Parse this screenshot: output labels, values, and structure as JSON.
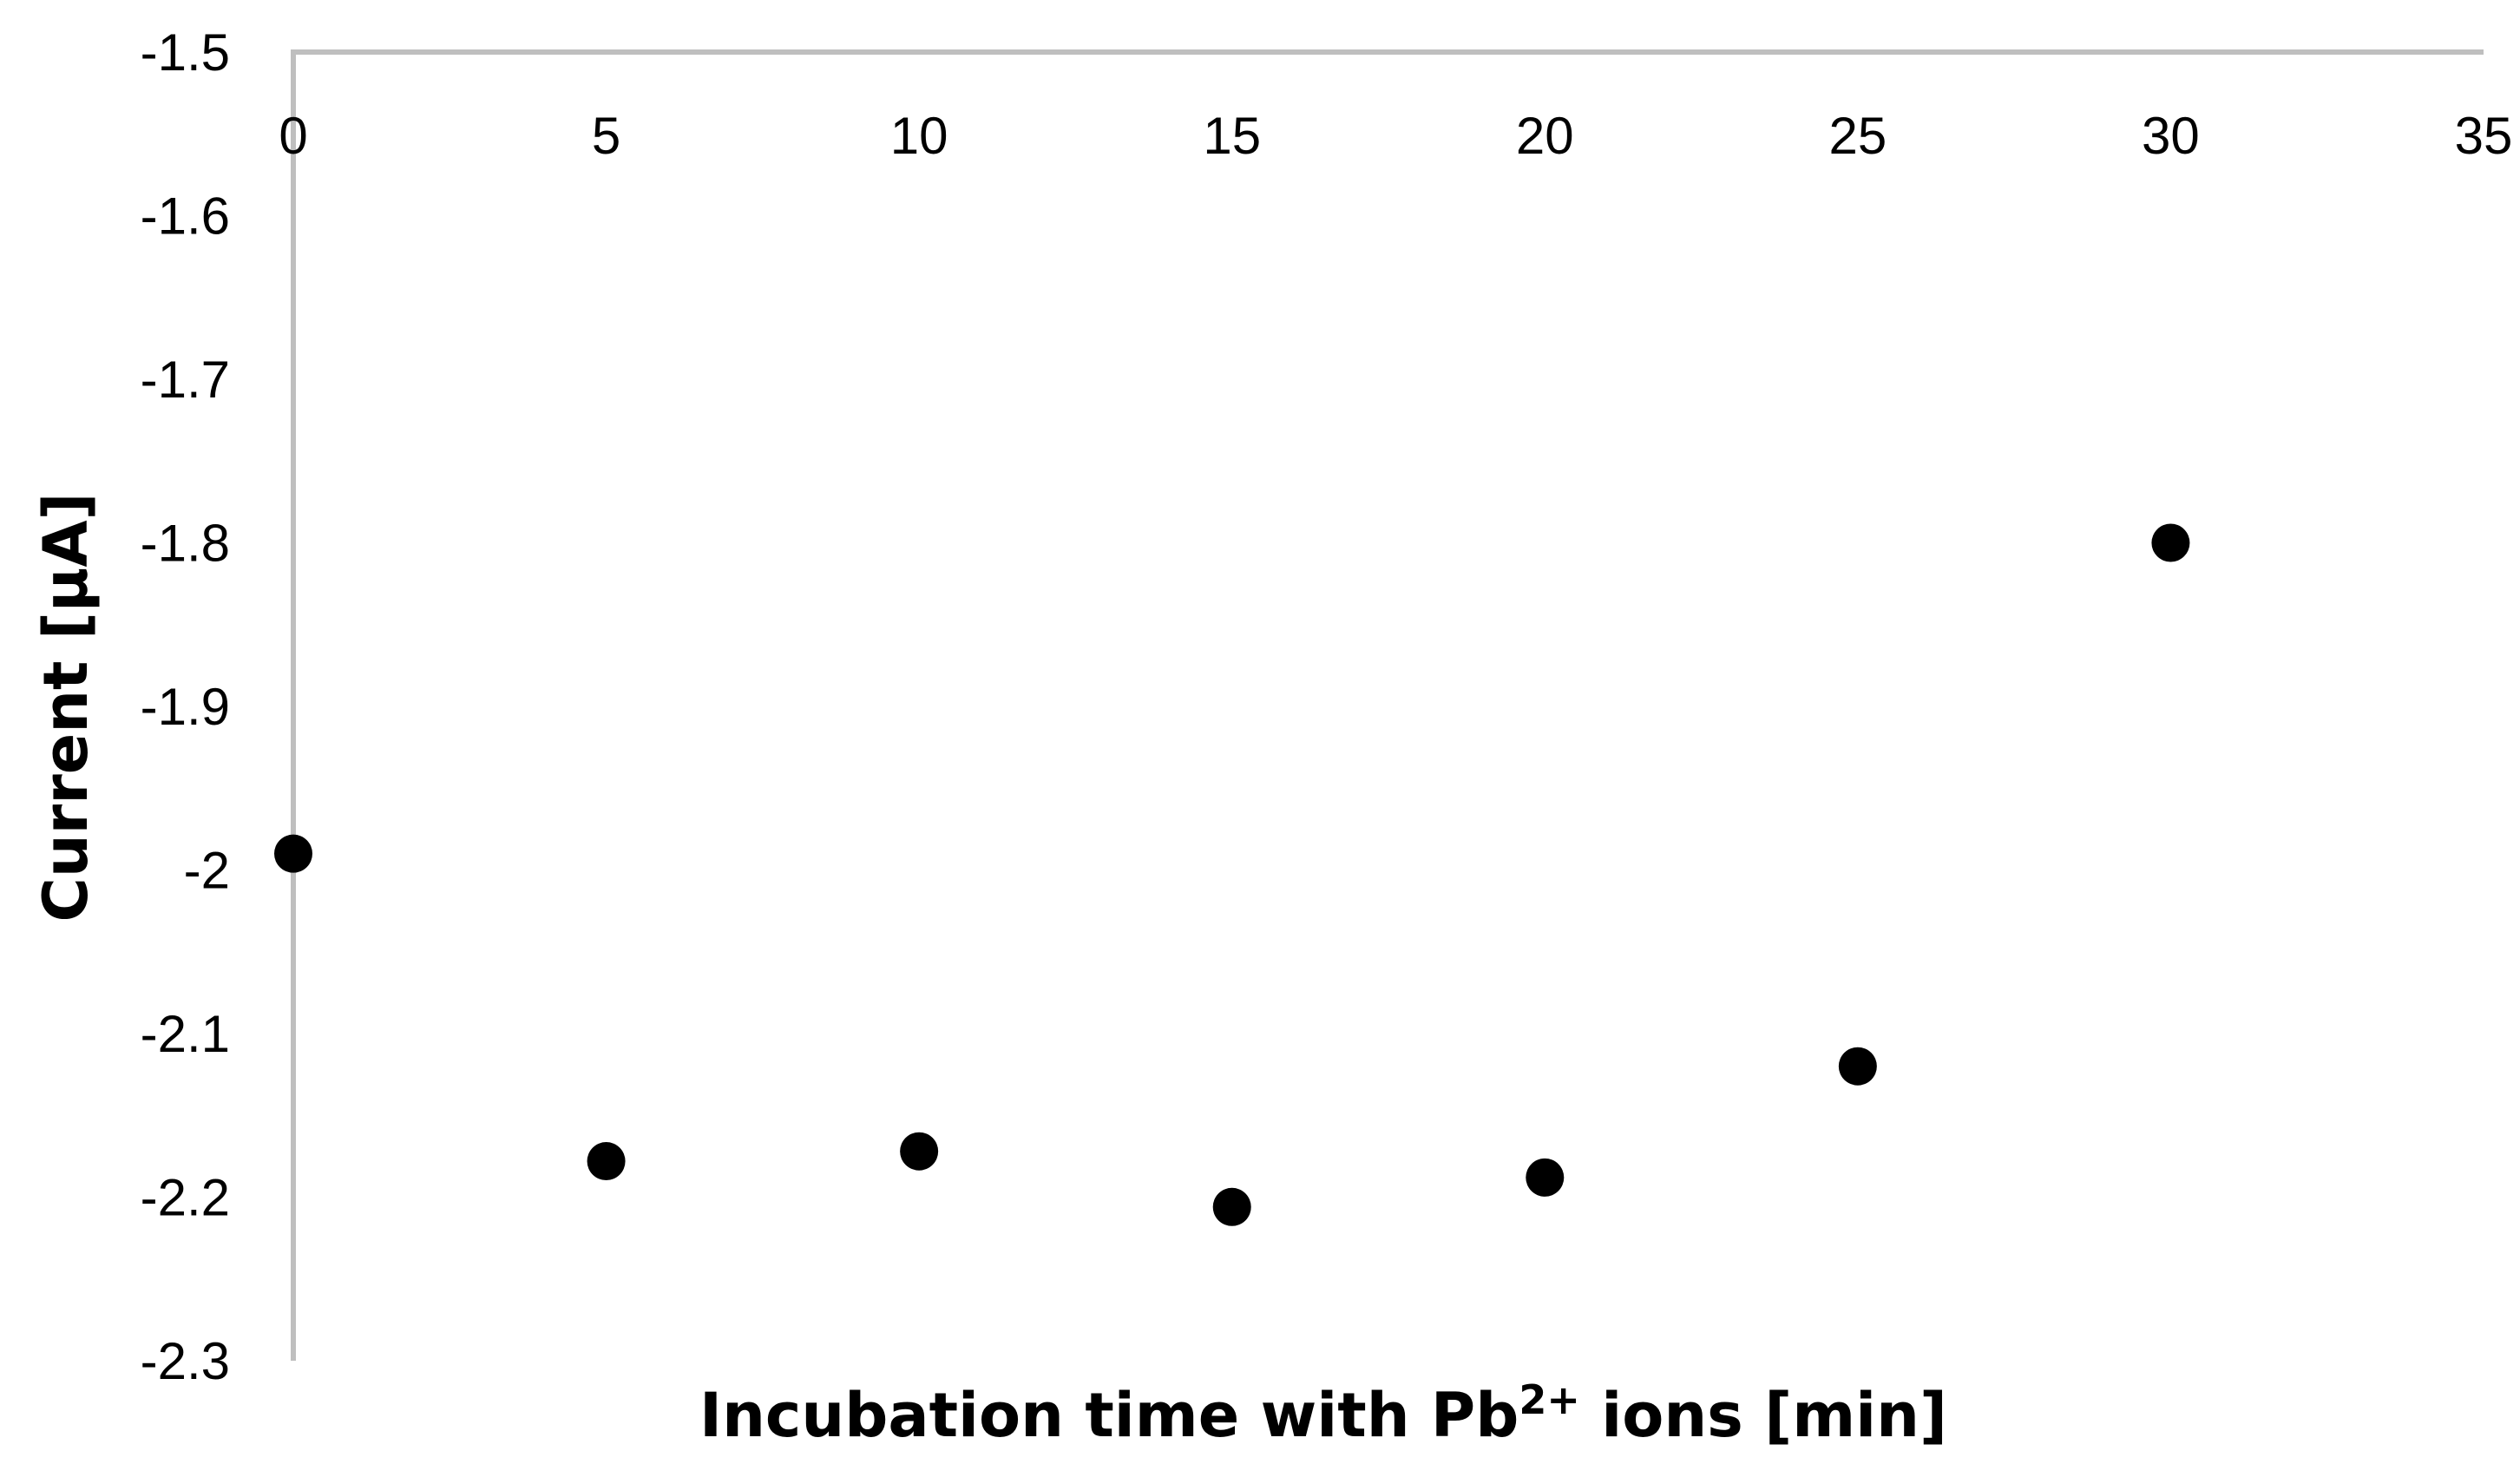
{
  "chart_data": {
    "type": "scatter",
    "title": "",
    "xlabel": "Incubation time with Pb",
    "xlabel_superscript": "2+",
    "xlabel_suffix": " ions [min]",
    "ylabel": "Current [µA]",
    "xlim": [
      0,
      35
    ],
    "ylim": [
      -2.3,
      -1.5
    ],
    "x_ticks": [
      "0",
      "5",
      "10",
      "15",
      "20",
      "25",
      "30",
      "35"
    ],
    "y_ticks": [
      "-1.5",
      "-1.6",
      "-1.7",
      "-1.8",
      "-1.9",
      "-2",
      "-2.1",
      "-2.2",
      "-2.3"
    ],
    "x_axis_position": "top",
    "grid": false,
    "legend": "none",
    "marker_color": "#000000",
    "axis_color": "#bfbfbf",
    "series": [
      {
        "x": [
          0,
          5,
          10,
          15,
          20,
          25,
          30
        ],
        "y": [
          -1.99,
          -2.178,
          -2.172,
          -2.206,
          -2.188,
          -2.12,
          -1.8
        ]
      }
    ]
  }
}
